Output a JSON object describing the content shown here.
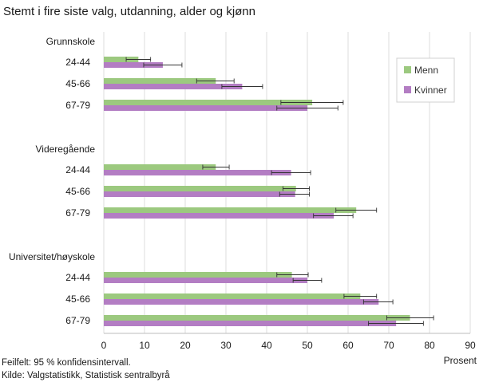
{
  "title": "Stemt i fire siste valg, utdanning, alder og kjønn",
  "footnote": [
    "Feilfelt: 95 % konfidensintervall.",
    "Kilde: Valgstatistikk, Statistisk sentralbyrå"
  ],
  "chart_data": {
    "type": "bar",
    "orientation": "horizontal",
    "title": "Stemt i fire siste valg, utdanning, alder og kjønn",
    "xlabel": "Prosent",
    "ylabel": "",
    "xlim": [
      0,
      90
    ],
    "ticks": [
      0,
      10,
      20,
      30,
      40,
      50,
      60,
      70,
      80,
      90
    ],
    "grid": true,
    "legend_position": "top-right",
    "series": [
      {
        "name": "Menn",
        "color": "#9cc97f"
      },
      {
        "name": "Kvinner",
        "color": "#b37dc3"
      }
    ],
    "groups": [
      {
        "name": "Grunnskole",
        "categories": [
          {
            "label": "24-44",
            "menn": {
              "value": 8.5,
              "low": 5.5,
              "high": 11.5
            },
            "kvinner": {
              "value": 14.5,
              "low": 9.8,
              "high": 19.2
            }
          },
          {
            "label": "45-66",
            "menn": {
              "value": 27.5,
              "low": 22.8,
              "high": 32.0
            },
            "kvinner": {
              "value": 34.0,
              "low": 29.0,
              "high": 39.0
            }
          },
          {
            "label": "67-79",
            "menn": {
              "value": 51.2,
              "low": 43.5,
              "high": 58.8
            },
            "kvinner": {
              "value": 50.0,
              "low": 42.5,
              "high": 57.5
            }
          }
        ]
      },
      {
        "name": "Videregående",
        "categories": [
          {
            "label": "24-44",
            "menn": {
              "value": 27.5,
              "low": 24.3,
              "high": 30.8
            },
            "kvinner": {
              "value": 46.0,
              "low": 41.2,
              "high": 50.8
            }
          },
          {
            "label": "45-66",
            "menn": {
              "value": 47.2,
              "low": 44.0,
              "high": 50.5
            },
            "kvinner": {
              "value": 47.0,
              "low": 43.2,
              "high": 50.5
            }
          },
          {
            "label": "67-79",
            "menn": {
              "value": 62.0,
              "low": 57.0,
              "high": 67.0
            },
            "kvinner": {
              "value": 56.5,
              "low": 51.5,
              "high": 61.2
            }
          }
        ]
      },
      {
        "name": "Universitet/høyskole",
        "categories": [
          {
            "label": "24-44",
            "menn": {
              "value": 46.2,
              "low": 42.5,
              "high": 50.2
            },
            "kvinner": {
              "value": 50.0,
              "low": 46.5,
              "high": 53.5
            }
          },
          {
            "label": "45-66",
            "menn": {
              "value": 63.0,
              "low": 59.0,
              "high": 67.0
            },
            "kvinner": {
              "value": 67.5,
              "low": 63.8,
              "high": 71.0
            }
          },
          {
            "label": "67-79",
            "menn": {
              "value": 75.2,
              "low": 69.5,
              "high": 81.0
            },
            "kvinner": {
              "value": 71.8,
              "low": 65.0,
              "high": 78.5
            }
          }
        ]
      }
    ]
  }
}
